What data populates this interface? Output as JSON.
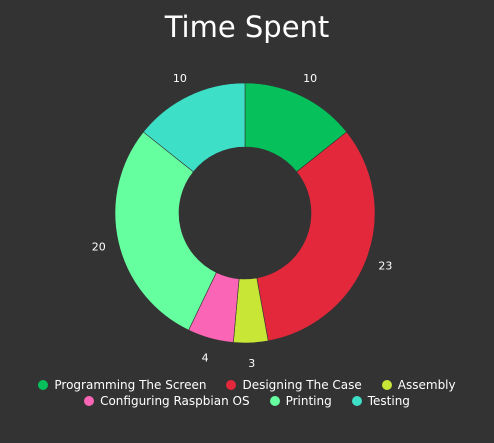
{
  "chart_data": {
    "type": "pie",
    "title": "Time Spent",
    "categories": [
      "Programming The Screen",
      "Designing The Case",
      "Assembly",
      "Configuring Raspbian OS",
      "Printing",
      "Testing"
    ],
    "values": [
      10,
      23,
      3,
      4,
      20,
      10
    ],
    "colors": [
      "#05c05b",
      "#e3283c",
      "#c8e636",
      "#fb65b5",
      "#66ffa0",
      "#3ddfc6"
    ],
    "donut": true,
    "legend_position": "bottom"
  }
}
